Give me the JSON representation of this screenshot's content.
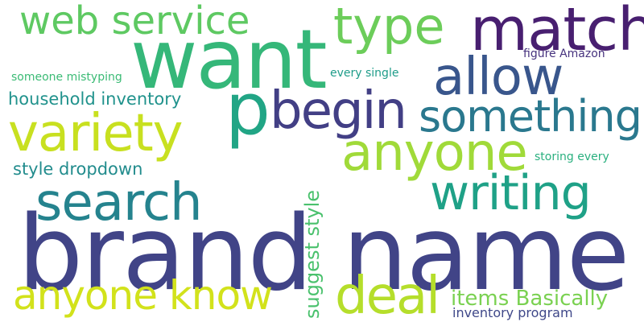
{
  "words": [
    {
      "key": "brand_name",
      "text": "brand name",
      "color": "#414487"
    },
    {
      "key": "want",
      "text": "want",
      "color": "#35b779"
    },
    {
      "key": "p",
      "text": "p",
      "color": "#21a585"
    },
    {
      "key": "match",
      "text": "match",
      "color": "#481f70"
    },
    {
      "key": "web_service",
      "text": "web service",
      "color": "#5ec962"
    },
    {
      "key": "type",
      "text": "type",
      "color": "#6ccd5a"
    },
    {
      "key": "allow",
      "text": "allow",
      "color": "#39568c"
    },
    {
      "key": "begin",
      "text": "begin",
      "color": "#423f85"
    },
    {
      "key": "something",
      "text": "something",
      "color": "#2a788e"
    },
    {
      "key": "variety",
      "text": "variety",
      "color": "#c8e020"
    },
    {
      "key": "anyone",
      "text": "anyone",
      "color": "#a0da39"
    },
    {
      "key": "search",
      "text": "search",
      "color": "#25838e"
    },
    {
      "key": "writing",
      "text": "writing",
      "color": "#1fa187"
    },
    {
      "key": "anyone_know",
      "text": "anyone know",
      "color": "#d2e21b"
    },
    {
      "key": "deal",
      "text": "deal",
      "color": "#b5de2b"
    },
    {
      "key": "items_basically",
      "text": "items Basically",
      "color": "#7ad151"
    },
    {
      "key": "household_inventory",
      "text": "household inventory",
      "color": "#20928c"
    },
    {
      "key": "style_dropdown",
      "text": "style dropdown",
      "color": "#228c8d"
    },
    {
      "key": "suggest_style",
      "text": "suggest style",
      "color": "#4ac16d"
    },
    {
      "key": "someone_mistyping",
      "text": "someone mistyping",
      "color": "#3bbb75"
    },
    {
      "key": "every_single",
      "text": "every single",
      "color": "#1e9c89"
    },
    {
      "key": "figure_amazon",
      "text": "figure Amazon",
      "color": "#46327e"
    },
    {
      "key": "storing_every",
      "text": "storing every",
      "color": "#2ab07f"
    },
    {
      "key": "inventory_program",
      "text": "inventory program",
      "color": "#3f4889"
    }
  ]
}
